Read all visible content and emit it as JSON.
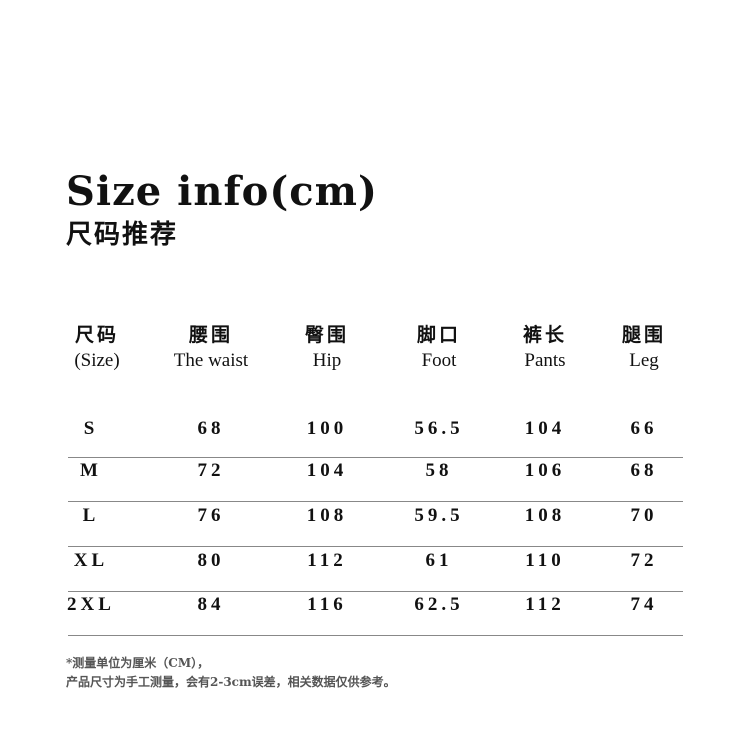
{
  "title": "Size info(cm)",
  "subtitle": "尺码推荐",
  "table": {
    "headers": [
      {
        "zh": "尺码",
        "en": "(Size)"
      },
      {
        "zh": "腰围",
        "en": "The waist"
      },
      {
        "zh": "臀围",
        "en": "Hip"
      },
      {
        "zh": "脚口",
        "en": "Foot"
      },
      {
        "zh": "裤长",
        "en": "Pants"
      },
      {
        "zh": "腿围",
        "en": "Leg"
      }
    ],
    "rows": [
      [
        "S",
        "68",
        "100",
        "56.5",
        "104",
        "66"
      ],
      [
        "M",
        "72",
        "104",
        "58",
        "106",
        "68"
      ],
      [
        "L",
        "76",
        "108",
        "59.5",
        "108",
        "70"
      ],
      [
        "XL",
        "80",
        "112",
        "61",
        "110",
        "72"
      ],
      [
        "2XL",
        "84",
        "116",
        "62.5",
        "112",
        "74"
      ]
    ]
  },
  "notes": [
    "*测量单位为厘米（CM），",
    "产品尺寸为手工测量，会有2-3cm误差，相关数据仅供参考。"
  ]
}
